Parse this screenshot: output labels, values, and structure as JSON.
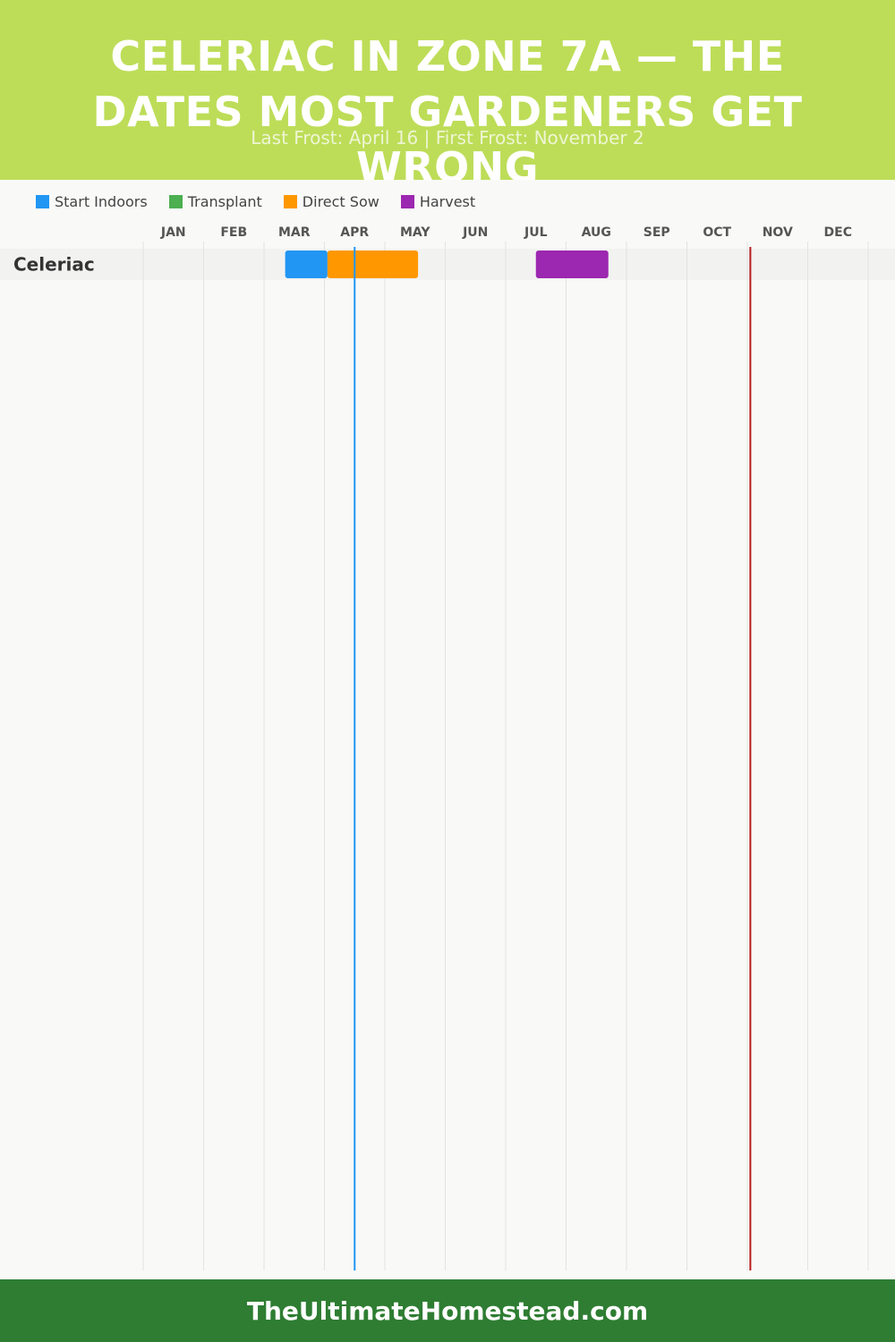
{
  "header": {
    "title": "CELERIAC IN ZONE 7A — THE DATES MOST GARDENERS GET WRONG",
    "subtitle": "Last Frost: April 16 | First Frost: November 2"
  },
  "footer": {
    "site": "TheUltimateHomestead.com"
  },
  "colors": {
    "header_bg": "#bddd58",
    "footer_bg": "#2e7d32",
    "last_frost_line": "#2196f3",
    "first_frost_line": "#b71c1c"
  },
  "chart_data": {
    "type": "gantt",
    "legend": [
      {
        "name": "Start Indoors",
        "color": "#2196f3"
      },
      {
        "name": "Transplant",
        "color": "#4caf50"
      },
      {
        "name": "Direct Sow",
        "color": "#ff9800"
      },
      {
        "name": "Harvest",
        "color": "#9c27b0"
      }
    ],
    "months": [
      "JAN",
      "FEB",
      "MAR",
      "APR",
      "MAY",
      "JUN",
      "JUL",
      "AUG",
      "SEP",
      "OCT",
      "NOV",
      "DEC"
    ],
    "rows": [
      {
        "crop": "Celeriac",
        "bars": [
          {
            "phase": "Start Indoors",
            "start_month": 3.35,
            "end_month": 4.05
          },
          {
            "phase": "Direct Sow",
            "start_month": 4.05,
            "end_month": 5.55
          },
          {
            "phase": "Harvest",
            "start_month": 7.5,
            "end_month": 8.7
          }
        ]
      }
    ],
    "markers": [
      {
        "label": "Last Frost",
        "date": "April 16",
        "month_pos": 4.5
      },
      {
        "label": "First Frost",
        "date": "November 2",
        "month_pos": 11.05
      }
    ]
  }
}
